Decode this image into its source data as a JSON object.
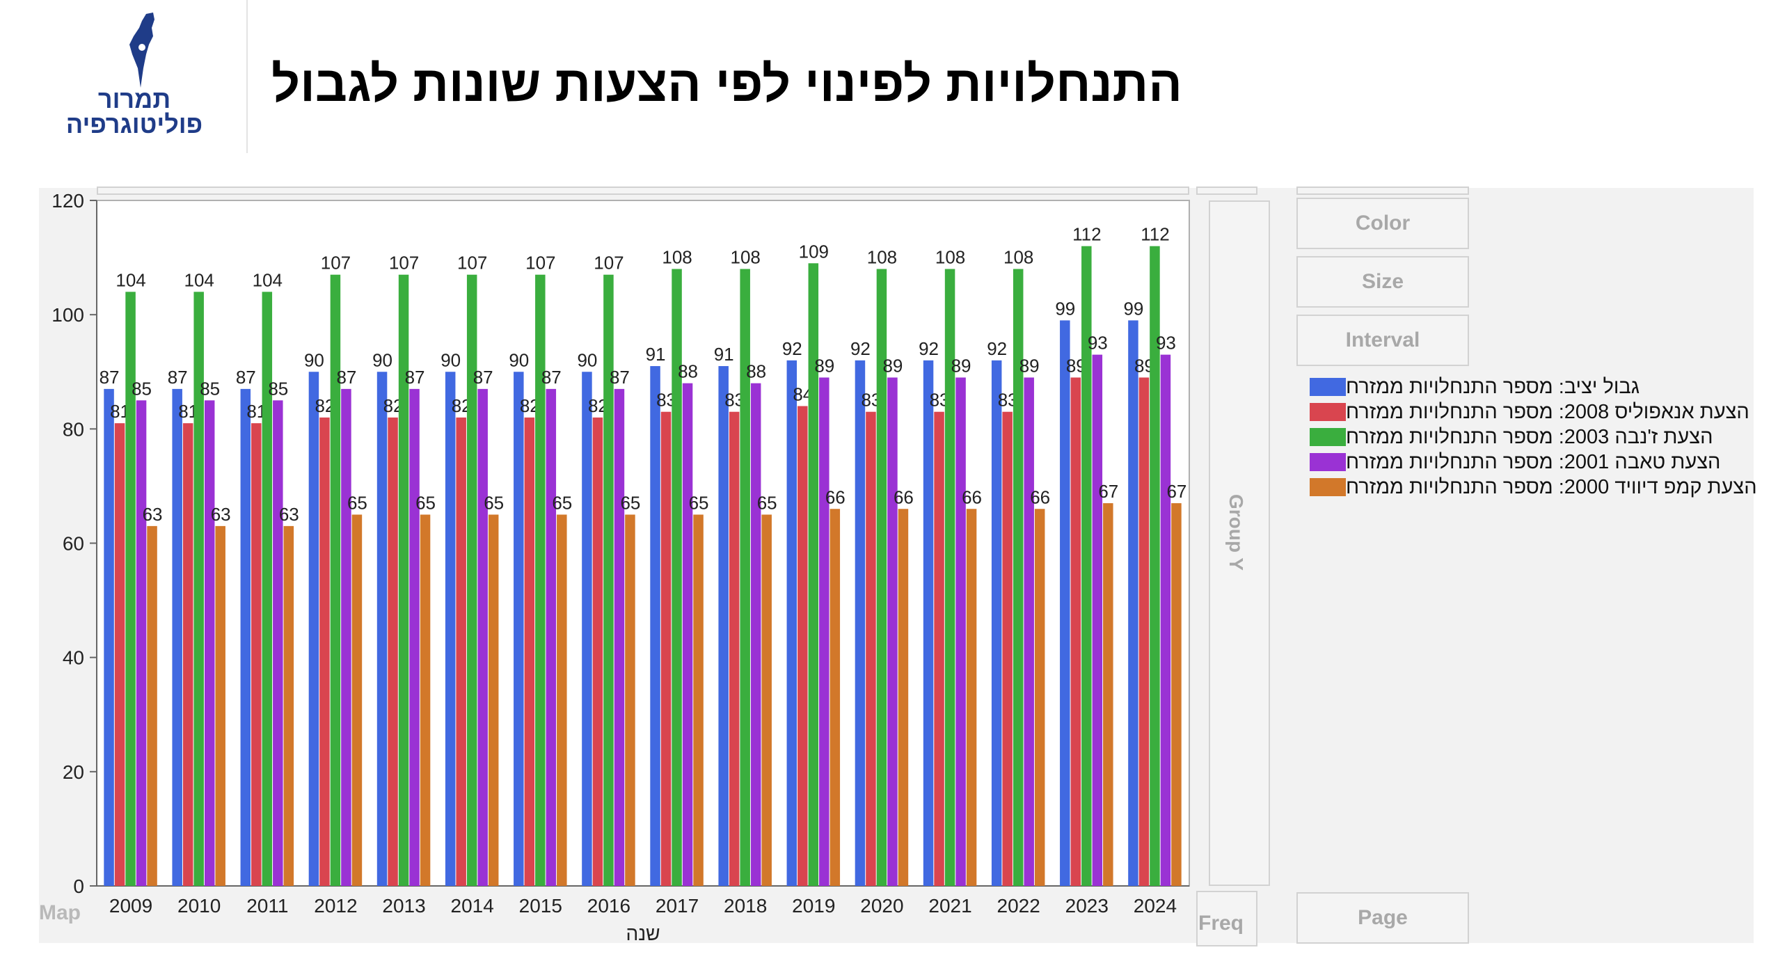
{
  "logo": {
    "line1": "תמרור",
    "line2": "פוליטוגרפיה"
  },
  "title": "התנחלויות לפינוי לפי הצעות שונות לגבול",
  "controls": {
    "color": "Color",
    "size": "Size",
    "interval": "Interval",
    "group_y": "Group Y",
    "freq": "Freq",
    "page": "Page",
    "map_shape": "Map"
  },
  "chart_data": {
    "type": "bar",
    "title": "",
    "xlabel": "שנה",
    "ylabel": "",
    "ylim": [
      0,
      120
    ],
    "yticks": [
      0,
      20,
      40,
      60,
      80,
      100,
      120
    ],
    "categories": [
      "2009",
      "2010",
      "2011",
      "2012",
      "2013",
      "2014",
      "2015",
      "2016",
      "2017",
      "2018",
      "2019",
      "2020",
      "2021",
      "2022",
      "2023",
      "2024"
    ],
    "legend_position": "right",
    "series": [
      {
        "name": "גבול יציב: מספר התנחלויות ממזרח",
        "color": "#4169e1",
        "values": [
          87,
          87,
          87,
          90,
          90,
          90,
          90,
          90,
          91,
          91,
          92,
          92,
          92,
          92,
          99,
          99
        ]
      },
      {
        "name": "הצעת אנאפוליס 2008: מספר התנחלויות ממזרח",
        "color": "#d9454f",
        "values": [
          81,
          81,
          81,
          82,
          82,
          82,
          82,
          82,
          83,
          83,
          84,
          83,
          83,
          83,
          89,
          89
        ]
      },
      {
        "name": "הצעת ז'נבה 2003: מספר התנחלויות ממזרח",
        "color": "#3aae3e",
        "values": [
          104,
          104,
          104,
          107,
          107,
          107,
          107,
          107,
          108,
          108,
          109,
          108,
          108,
          108,
          112,
          112
        ]
      },
      {
        "name": "הצעת טאבה 2001: מספר התנחלויות ממזרח",
        "color": "#9a32d4",
        "values": [
          85,
          85,
          85,
          87,
          87,
          87,
          87,
          87,
          88,
          88,
          89,
          89,
          89,
          89,
          93,
          93
        ]
      },
      {
        "name": "הצעת קמפ דיוויד 2000: מספר התנחלויות ממזרח",
        "color": "#d2782a",
        "values": [
          63,
          63,
          63,
          65,
          65,
          65,
          65,
          65,
          65,
          65,
          66,
          66,
          66,
          66,
          67,
          67
        ]
      }
    ]
  }
}
